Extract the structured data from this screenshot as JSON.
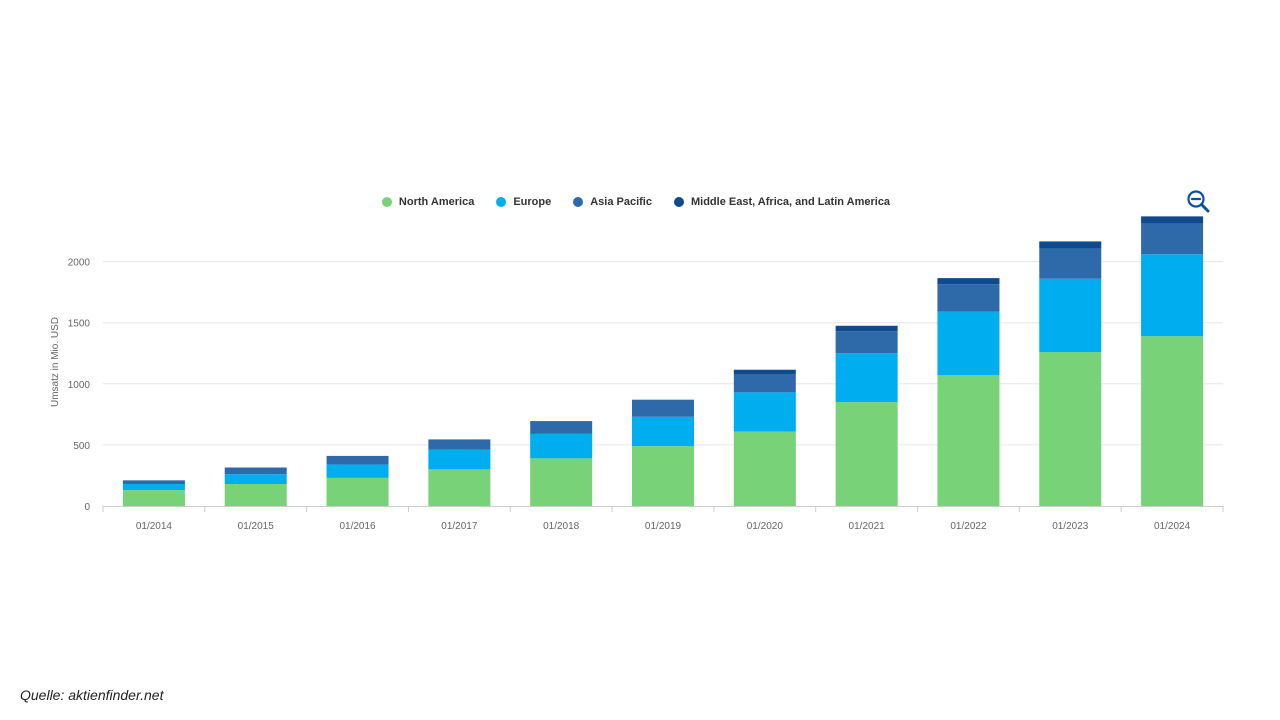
{
  "chart_data": {
    "type": "bar",
    "stacked": true,
    "ylabel": "Umsatz in Mio. USD",
    "xlabel": "",
    "ylim": [
      0,
      2300
    ],
    "yticks": [
      0,
      500,
      1000,
      1500,
      2000
    ],
    "grid": true,
    "legend_position": "top-center",
    "categories": [
      "01/2014",
      "01/2015",
      "01/2016",
      "01/2017",
      "01/2018",
      "01/2019",
      "01/2020",
      "01/2021",
      "01/2022",
      "01/2023",
      "01/2024"
    ],
    "series": [
      {
        "name": "North America",
        "color": "#78d278",
        "values": [
          130,
          180,
          230,
          300,
          390,
          490,
          610,
          850,
          1070,
          1260,
          1390
        ]
      },
      {
        "name": "Europe",
        "color": "#00aeef",
        "values": [
          50,
          80,
          110,
          160,
          200,
          240,
          320,
          400,
          520,
          600,
          670
        ]
      },
      {
        "name": "Asia Pacific",
        "color": "#2e6aaa",
        "values": [
          30,
          55,
          70,
          85,
          105,
          140,
          150,
          180,
          225,
          245,
          250
        ]
      },
      {
        "name": "Middle East, Africa, and Latin America",
        "color": "#0d4a8e",
        "values": [
          0,
          0,
          0,
          0,
          0,
          0,
          35,
          45,
          50,
          60,
          60
        ]
      }
    ]
  },
  "source": "Quelle: aktienfinder.net",
  "icons": {
    "zoom": "zoom-out-icon"
  },
  "colors": {
    "accent": "#0b4fa0",
    "grid": "#e6e6e6",
    "axis_text": "#666666"
  }
}
